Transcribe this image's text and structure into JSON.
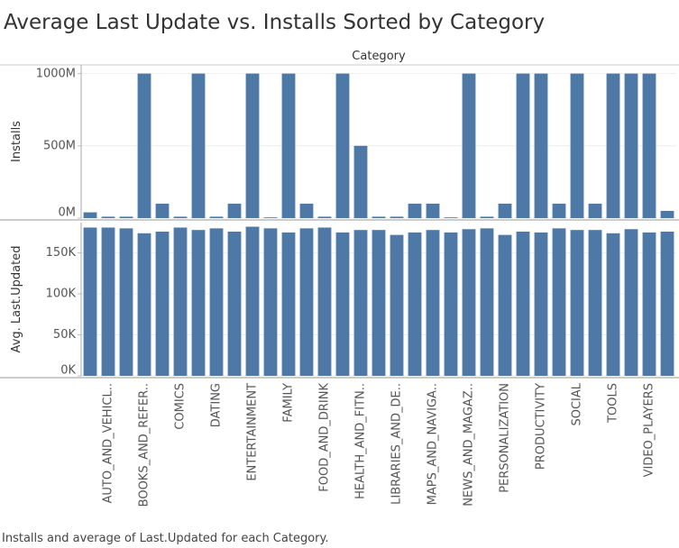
{
  "chart_data": {
    "type": "bar",
    "title": "Average Last Update vs. Installs Sorted by Category",
    "x_label": "Category",
    "caption": "Installs and average of Last.Updated for each Category.",
    "color": "#4e79a7",
    "grid": true,
    "categories": [
      null,
      "AUTO_AND_VEHICL..",
      null,
      "BOOKS_AND_REFER..",
      null,
      "COMICS",
      null,
      "DATING",
      null,
      "ENTERTAINMENT",
      null,
      "FAMILY",
      null,
      "FOOD_AND_DRINK",
      null,
      "HEALTH_AND_FITN..",
      null,
      "LIBRARIES_AND_DE..",
      null,
      "MAPS_AND_NAVIGA..",
      null,
      "NEWS_AND_MAGAZ..",
      null,
      "PERSONALIZATION",
      null,
      "PRODUCTIVITY",
      null,
      "SOCIAL",
      null,
      "TOOLS",
      null,
      "VIDEO_PLAYERS",
      null
    ],
    "panels": [
      {
        "y_label": "Installs",
        "ylim": [
          0,
          1060000000
        ],
        "yticks": [
          {
            "value": 0,
            "label": "0M"
          },
          {
            "value": 500000000,
            "label": "500M"
          },
          {
            "value": 1000000000,
            "label": "1000M"
          }
        ],
        "values": [
          40000000,
          10000000,
          10000000,
          1000000000,
          100000000,
          10000000,
          1000000000,
          10000000,
          100000000,
          1000000000,
          5000000,
          1000000000,
          100000000,
          10000000,
          1000000000,
          500000000,
          10000000,
          10000000,
          100000000,
          100000000,
          5000000,
          1000000000,
          10000000,
          100000000,
          1000000000,
          1000000000,
          100000000,
          1000000000,
          100000000,
          1000000000,
          1000000000,
          1000000000,
          50000000
        ]
      },
      {
        "y_label": "Avg. Last.Updated",
        "ylim": [
          0,
          187000
        ],
        "yticks": [
          {
            "value": 0,
            "label": "0K"
          },
          {
            "value": 50000,
            "label": "50K"
          },
          {
            "value": 100000,
            "label": "100K"
          },
          {
            "value": 150000,
            "label": "150K"
          }
        ],
        "values": [
          181000,
          181000,
          180000,
          174000,
          176000,
          181000,
          178000,
          180000,
          176000,
          182000,
          180000,
          175000,
          180000,
          181000,
          175000,
          178000,
          178000,
          172000,
          175000,
          178000,
          175000,
          179000,
          180000,
          172000,
          176000,
          175000,
          180000,
          178000,
          178000,
          174000,
          179000,
          175000,
          176000
        ]
      }
    ]
  }
}
